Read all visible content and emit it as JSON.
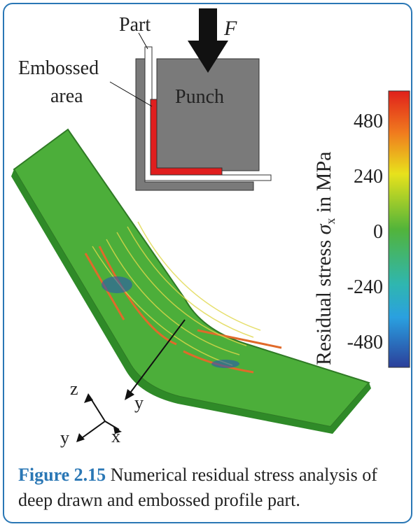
{
  "figure": {
    "labels": {
      "part": "Part",
      "force": "F",
      "embossed": [
        "Embossed",
        "area"
      ],
      "punch": "Punch"
    },
    "colorbar": {
      "label": [
        "Residual stress",
        "σ",
        "x",
        "in MPa"
      ],
      "ticks": [
        480,
        240,
        0,
        -240,
        -480
      ]
    },
    "axes": {
      "z": "z",
      "y": "y",
      "x": "x",
      "section": "y"
    }
  },
  "caption": {
    "label": "Figure 2.15",
    "text": "Numerical residual stress analysis of deep drawn and embossed profile part."
  }
}
